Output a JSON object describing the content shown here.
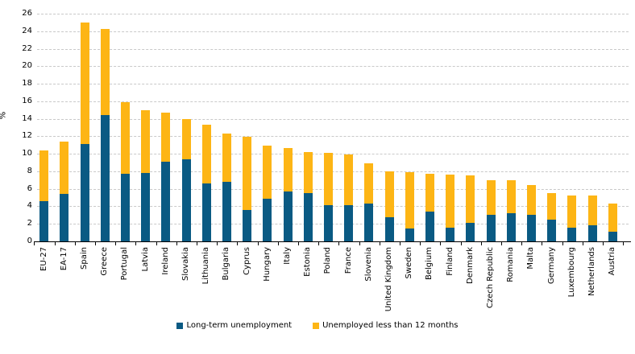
{
  "chart_data": {
    "type": "bar",
    "stacked": true,
    "title": "",
    "xlabel": "",
    "ylabel": "%",
    "y_axis": {
      "min": 0,
      "max": 26,
      "step": 2
    },
    "y_ticks": [
      0,
      2,
      4,
      6,
      8,
      10,
      12,
      14,
      16,
      18,
      20,
      22,
      24,
      26
    ],
    "grid": "horizontal-dashed",
    "legend_position": "bottom",
    "categories": [
      "EU-27",
      "EA-17",
      "Spain",
      "Greece",
      "Portugal",
      "Latvia",
      "Ireland",
      "Slovakia",
      "Lithuania",
      "Bulgaria",
      "Cyprus",
      "Hungary",
      "Italy",
      "Estonia",
      "Poland",
      "France",
      "Slovenia",
      "United Kingdom",
      "Sweden",
      "Belgium",
      "Finland",
      "Denmark",
      "Czech Republic",
      "Romania",
      "Malta",
      "Germany",
      "Luxembourg",
      "Netherlands",
      "Austria"
    ],
    "series": [
      {
        "name": "Long-term unemployment",
        "color": "#0a5a83",
        "values": [
          4.6,
          5.4,
          11.1,
          14.4,
          7.7,
          7.8,
          9.1,
          9.4,
          6.6,
          6.8,
          3.6,
          4.9,
          5.7,
          5.5,
          4.1,
          4.1,
          4.3,
          2.8,
          1.5,
          3.4,
          1.6,
          2.1,
          3.0,
          3.2,
          3.0,
          2.5,
          1.6,
          1.8,
          1.1
        ]
      },
      {
        "name": "Unemployed less than 12 months",
        "color": "#fdb515",
        "values": [
          5.8,
          6.0,
          13.9,
          9.9,
          8.2,
          7.2,
          5.6,
          4.6,
          6.7,
          5.5,
          8.3,
          6.0,
          5.0,
          4.7,
          6.0,
          5.8,
          4.6,
          5.2,
          6.4,
          4.3,
          6.0,
          5.4,
          4.0,
          3.8,
          3.4,
          3.0,
          3.6,
          3.4,
          3.2
        ]
      }
    ],
    "totals": [
      10.4,
      11.4,
      25.0,
      24.3,
      15.9,
      15.0,
      14.7,
      14.0,
      13.3,
      12.3,
      11.9,
      10.9,
      10.7,
      10.2,
      10.1,
      9.9,
      8.9,
      8.0,
      7.9,
      7.7,
      7.6,
      7.5,
      7.0,
      7.0,
      6.4,
      5.5,
      5.2,
      5.2,
      4.3
    ],
    "gridline_color": "#c9c9c9",
    "axis_color": "#000000"
  }
}
